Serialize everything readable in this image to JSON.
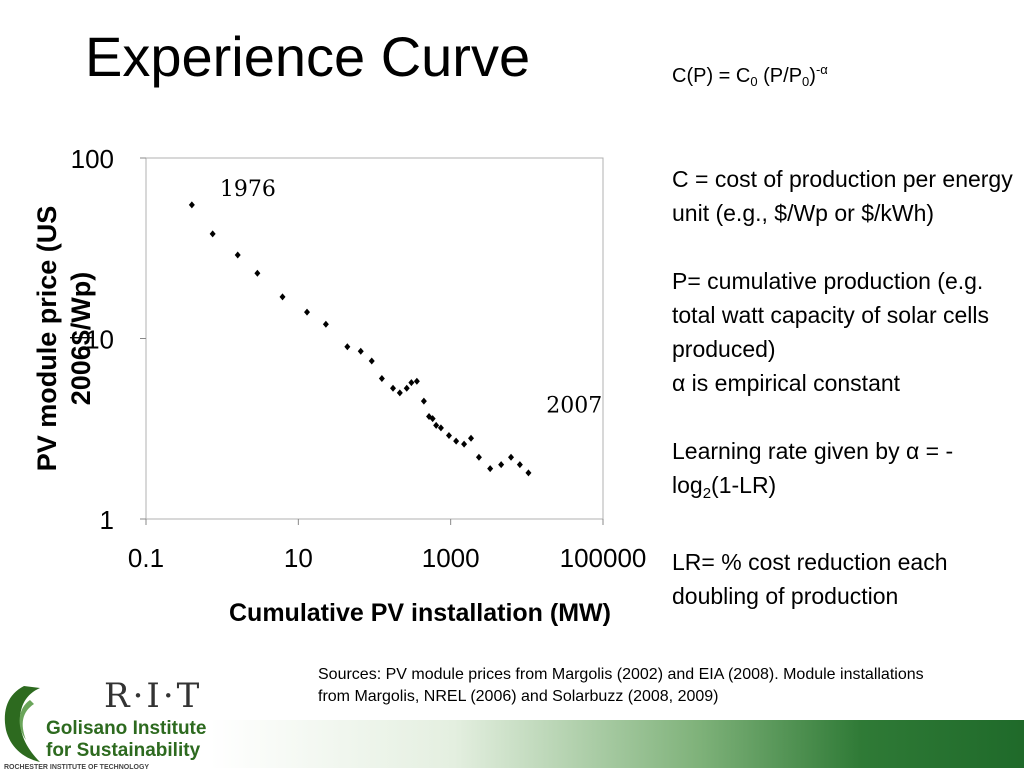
{
  "title": "Experience Curve",
  "formula": {
    "c_p": "C(P) = C",
    "sub0": "0",
    "mid": " (P/P",
    "sub1": "0",
    "close": ")",
    "exp": "-α"
  },
  "definitions": {
    "c_def": "C = cost of production per energy unit (e.g., $/Wp or $/kWh)",
    "p_def": "P= cumulative production (e.g. total watt capacity of solar cells produced)",
    "alpha_def": "α is empirical constant",
    "lr_prefix": "Learning rate given by α = - log",
    "lr_sub": "2",
    "lr_suffix": "(1-LR)",
    "lr_def": "LR= % cost reduction each doubling of production"
  },
  "sources": "Sources: PV module prices from Margolis (2002) and EIA (2008). Module installations from Margolis, NREL (2006) and Solarbuzz (2008, 2009)",
  "logo": {
    "rit": "R·I·T",
    "line1": "Golisano Institute",
    "line2": "for Sustainability",
    "line3": "ROCHESTER INSTITUTE OF TECHNOLOGY"
  },
  "colors": {
    "green": "#2d6a1f",
    "band_dark": "#1f6a2a"
  },
  "chart_data": {
    "type": "scatter",
    "x_scale": "log",
    "y_scale": "log",
    "xlim": [
      0.1,
      100000
    ],
    "ylim": [
      1,
      100
    ],
    "x_ticks": [
      "0.1",
      "10",
      "1000",
      "100000"
    ],
    "y_ticks": [
      "1",
      "10",
      "100"
    ],
    "xlabel": "Cumulative PV installation (MW)",
    "ylabel": "PV module price (US 2006$/Wp)",
    "grid": false,
    "annotations": [
      {
        "text": "1976",
        "x": 0.4,
        "y": 60
      },
      {
        "text": "2007",
        "x": 15000,
        "y": 3.8
      }
    ],
    "x": [
      0.4,
      0.75,
      1.6,
      2.9,
      6.2,
      13,
      23,
      44,
      66,
      92,
      125,
      175,
      215,
      265,
      305,
      360,
      445,
      520,
      580,
      645,
      745,
      950,
      1180,
      1500,
      1850,
      2350,
      3300,
      4600,
      6200,
      8100,
      10500
    ],
    "y": [
      55,
      38,
      29,
      23,
      17,
      14,
      12,
      9,
      8.5,
      7.5,
      6,
      5.3,
      5,
      5.3,
      5.7,
      5.8,
      4.5,
      3.7,
      3.6,
      3.3,
      3.2,
      2.9,
      2.7,
      2.6,
      2.8,
      2.2,
      1.9,
      2,
      2.2,
      2,
      1.8
    ]
  }
}
